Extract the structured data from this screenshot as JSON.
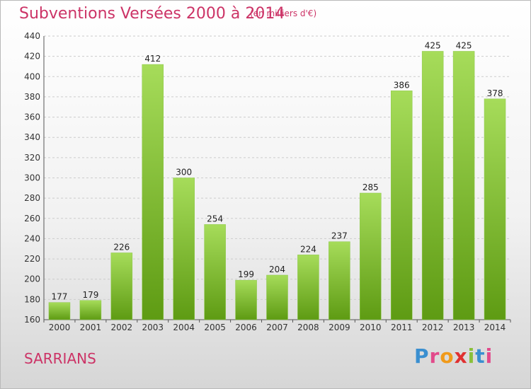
{
  "header": {
    "title": "Subventions Versées 2000 à 2014",
    "subtitle": "(en milliers d'€)"
  },
  "footer": {
    "commune": "SARRIANS",
    "brand_letters": [
      {
        "ch": "P",
        "color": "#3a8fd0"
      },
      {
        "ch": "r",
        "color": "#e24a8b"
      },
      {
        "ch": "o",
        "color": "#f09a1a"
      },
      {
        "ch": "x",
        "color": "#e03030"
      },
      {
        "ch": "i",
        "color": "#8ac03a"
      },
      {
        "ch": "t",
        "color": "#3a8fd0"
      },
      {
        "ch": "i",
        "color": "#e24a8b"
      }
    ]
  },
  "colors": {
    "title": "#cc3366",
    "bar_light": "#a6dc5a",
    "bar_dark": "#5e9b13",
    "grid": "#cccccc",
    "axis": "#555555"
  },
  "chart_data": {
    "type": "bar",
    "categories": [
      "2000",
      "2001",
      "2002",
      "2003",
      "2004",
      "2005",
      "2006",
      "2007",
      "2008",
      "2009",
      "2010",
      "2011",
      "2012",
      "2013",
      "2014"
    ],
    "values": [
      177,
      179,
      226,
      412,
      300,
      254,
      199,
      204,
      224,
      237,
      285,
      386,
      425,
      425,
      378
    ],
    "title": "Subventions Versées 2000 à 2014",
    "ylabel": "",
    "xlabel": "",
    "ylim": [
      160,
      440
    ],
    "yticks": [
      160,
      180,
      200,
      220,
      240,
      260,
      280,
      300,
      320,
      340,
      360,
      380,
      400,
      420,
      440
    ],
    "grid": "horizontal dashed",
    "legend": "none"
  }
}
